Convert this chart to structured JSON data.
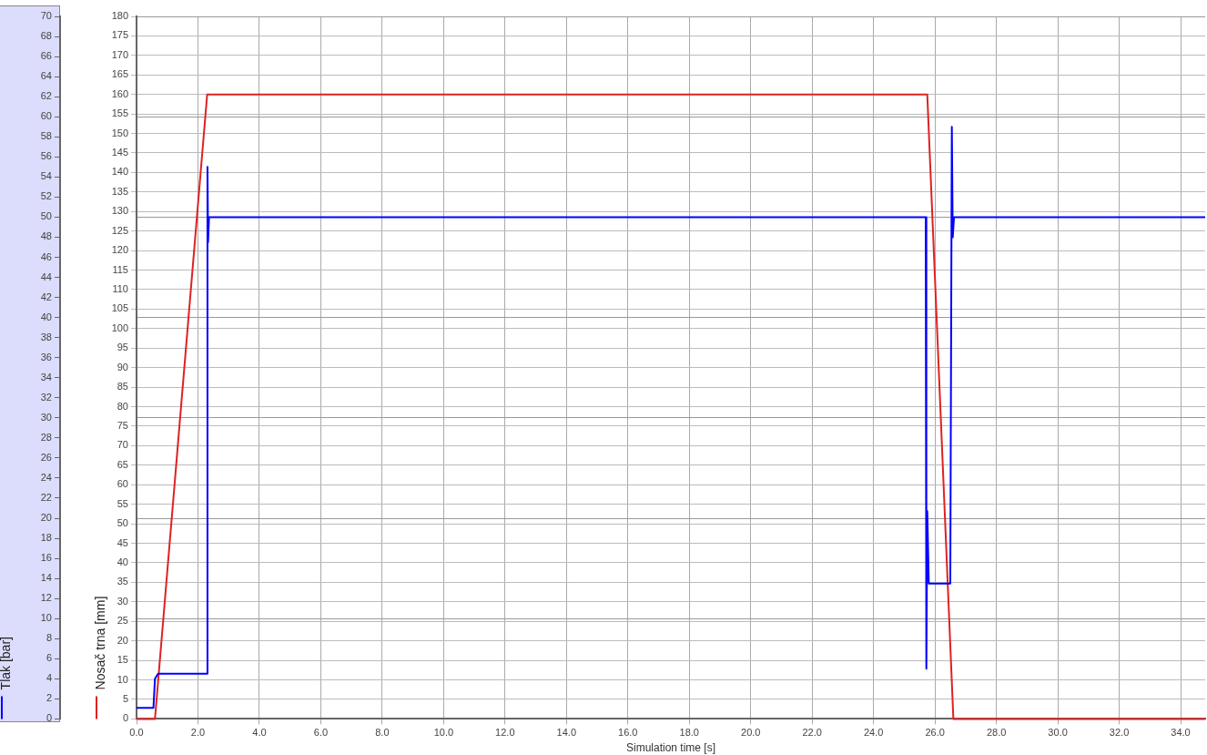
{
  "chart_data": {
    "type": "line",
    "xlabel": "Simulation time [s]",
    "ylabel": "Nosač trna [mm]",
    "y2label": "Tlak [bar]",
    "xlim": [
      0,
      34.8
    ],
    "xticks": [
      {
        "value": 0,
        "label": "0.0"
      },
      {
        "value": 2,
        "label": "2.0"
      },
      {
        "value": 4,
        "label": "4.0"
      },
      {
        "value": 6,
        "label": "6.0"
      },
      {
        "value": 8,
        "label": "8.0"
      },
      {
        "value": 10,
        "label": "10.0"
      },
      {
        "value": 12,
        "label": "12.0"
      },
      {
        "value": 14,
        "label": "14.0"
      },
      {
        "value": 16,
        "label": "16.0"
      },
      {
        "value": 18,
        "label": "18.0"
      },
      {
        "value": 20,
        "label": "20.0"
      },
      {
        "value": 22,
        "label": "22.0"
      },
      {
        "value": 24,
        "label": "24.0"
      },
      {
        "value": 26,
        "label": "26.0"
      },
      {
        "value": 28,
        "label": "28.0"
      },
      {
        "value": 30,
        "label": "30.0"
      },
      {
        "value": 32,
        "label": "32.0"
      },
      {
        "value": 34,
        "label": "34.0"
      }
    ],
    "ylim": [
      0,
      180
    ],
    "yticks": [
      0,
      5,
      10,
      15,
      20,
      25,
      30,
      35,
      40,
      45,
      50,
      55,
      60,
      65,
      70,
      75,
      80,
      85,
      90,
      95,
      100,
      105,
      110,
      115,
      120,
      125,
      130,
      135,
      140,
      145,
      150,
      155,
      160,
      165,
      170,
      175,
      180
    ],
    "y2lim": [
      0,
      70
    ],
    "y2ticks": [
      0,
      2,
      4,
      6,
      8,
      10,
      12,
      14,
      16,
      18,
      20,
      22,
      24,
      26,
      28,
      30,
      32,
      34,
      36,
      38,
      40,
      42,
      44,
      46,
      48,
      50,
      52,
      54,
      56,
      58,
      60,
      62,
      64,
      66,
      68,
      70
    ],
    "grid": true,
    "legend": false,
    "marker": "none",
    "line_style": "solid",
    "series": [
      {
        "color": "#0000ff",
        "axis": "y2",
        "x": [
          0,
          0.55,
          0.6,
          0.7,
          2.3,
          2.31,
          2.33,
          2.36,
          25.7,
          25.72,
          25.75,
          25.8,
          26.5,
          26.55,
          26.58,
          26.62,
          34.8
        ],
        "values": [
          1.1,
          1.1,
          4,
          4.5,
          4.5,
          55,
          47.5,
          50,
          50,
          5,
          20.7,
          13.5,
          13.5,
          59,
          48,
          50,
          50
        ]
      },
      {
        "color": "#dd2222",
        "axis": "y",
        "x": [
          0,
          0.6,
          2.3,
          25.75,
          26.6,
          34.8
        ],
        "values": [
          0,
          0,
          160,
          160,
          0,
          0
        ]
      }
    ]
  }
}
